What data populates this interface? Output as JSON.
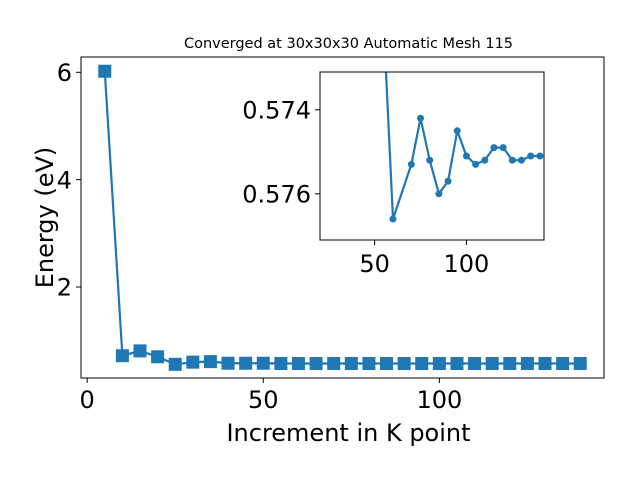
{
  "colors": {
    "series": "#1f77b4",
    "axes": "#000000",
    "background": "#ffffff"
  },
  "chart_data": [
    {
      "type": "line",
      "title": "Converged at 30x30x30 Automatic Mesh 115",
      "xlabel": "Increment in K point",
      "ylabel": "Energy (eV)",
      "xlim": [
        -1.75,
        146.75
      ],
      "ylim": [
        0.305,
        6.285
      ],
      "xticks": [
        0,
        50,
        100
      ],
      "yticks": [
        2,
        4,
        6
      ],
      "marker": "square",
      "grid": false,
      "x": [
        5,
        10,
        15,
        20,
        25,
        30,
        35,
        40,
        45,
        50,
        55,
        60,
        65,
        70,
        75,
        80,
        85,
        90,
        95,
        100,
        105,
        110,
        115,
        120,
        125,
        130,
        135,
        140
      ],
      "y": [
        6.02,
        0.72,
        0.81,
        0.7,
        0.56,
        0.6,
        0.61,
        0.58,
        0.58,
        0.58,
        0.575,
        0.575,
        0.575,
        0.575,
        0.575,
        0.575,
        0.575,
        0.575,
        0.575,
        0.575,
        0.575,
        0.575,
        0.575,
        0.575,
        0.575,
        0.575,
        0.575,
        0.575
      ]
    },
    {
      "type": "line",
      "title": "",
      "inset": true,
      "xlim": [
        20.25,
        142.25
      ],
      "ylim": [
        0.5771,
        0.5731
      ],
      "y_inverted": true,
      "xticks": [
        50,
        100
      ],
      "yticks": [
        0.574,
        0.576
      ],
      "ytick_labels": [
        "0.574",
        "0.576"
      ],
      "marker": "circle",
      "grid": false,
      "x": [
        55,
        60,
        70,
        75,
        80,
        85,
        90,
        95,
        100,
        105,
        110,
        115,
        120,
        125,
        130,
        135,
        140
      ],
      "y": [
        0.572,
        0.5766,
        0.5753,
        0.5742,
        0.5752,
        0.576,
        0.5757,
        0.5745,
        0.5751,
        0.5753,
        0.5752,
        0.5749,
        0.5749,
        0.5752,
        0.5752,
        0.5751,
        0.5751
      ]
    }
  ]
}
